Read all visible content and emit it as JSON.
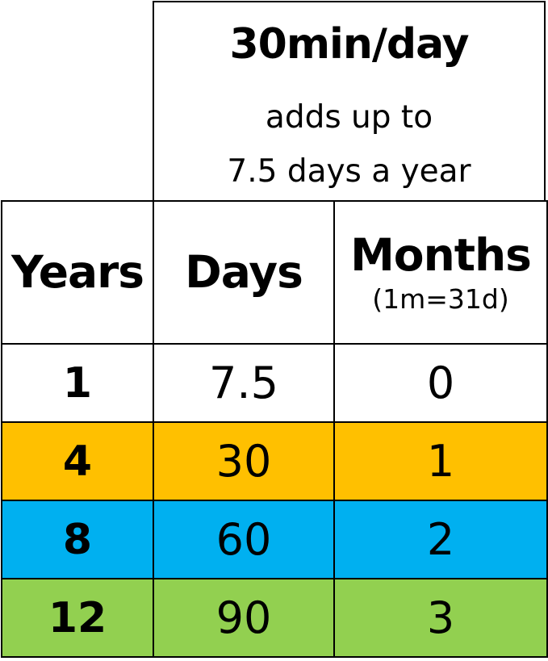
{
  "header": {
    "title": "30min/day",
    "line1": "adds up to",
    "line2": "7.5 days a year"
  },
  "columns": {
    "years": "Years",
    "days": "Days",
    "months": "Months",
    "months_note": "(1m=31d)"
  },
  "rows": [
    {
      "years": "1",
      "days": "7.5",
      "months": "0",
      "color": "#ffffff"
    },
    {
      "years": "4",
      "days": "30",
      "months": "1",
      "color": "#ffc000"
    },
    {
      "years": "8",
      "days": "60",
      "months": "2",
      "color": "#00b0f0"
    },
    {
      "years": "12",
      "days": "90",
      "months": "3",
      "color": "#92d050"
    }
  ]
}
